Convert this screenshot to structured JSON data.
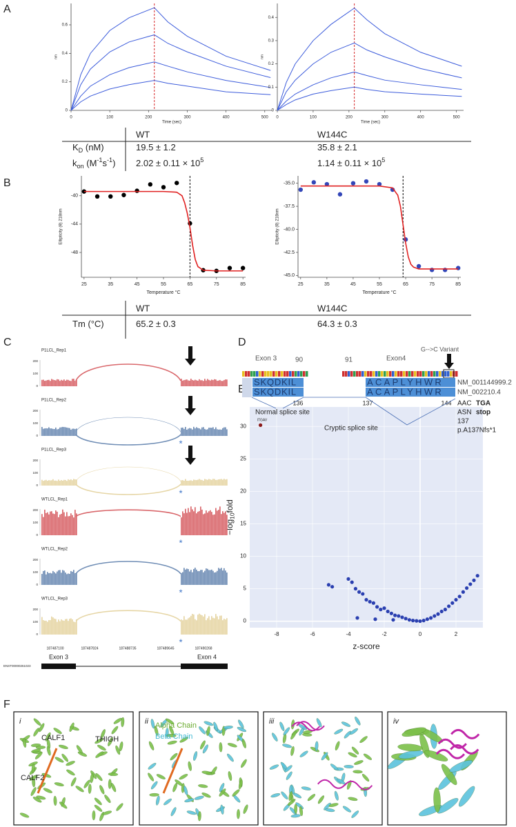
{
  "letters": [
    "A",
    "B",
    "C",
    "D",
    "E",
    "F"
  ],
  "chart_data": [
    {
      "type": "line",
      "xlabel": "Time (sec)",
      "ylabel": "nm",
      "x": [
        0,
        25,
        50,
        100,
        150,
        215,
        250,
        300,
        400,
        515
      ],
      "xlim": [
        0,
        520
      ],
      "xticks": [
        0,
        100,
        200,
        300,
        400,
        500
      ],
      "ylim": [
        0,
        0.75
      ],
      "yticks": [
        0,
        0.2,
        0.4,
        0.6
      ],
      "vline": 215,
      "vline_color": "#d62728",
      "series": [
        {
          "color": "#3b5bdb",
          "values": [
            0,
            0.25,
            0.4,
            0.56,
            0.65,
            0.72,
            0.62,
            0.52,
            0.38,
            0.28
          ]
        },
        {
          "color": "#3b5bdb",
          "values": [
            0,
            0.18,
            0.29,
            0.41,
            0.48,
            0.53,
            0.47,
            0.41,
            0.31,
            0.23
          ]
        },
        {
          "color": "#3b5bdb",
          "values": [
            0,
            0.1,
            0.17,
            0.25,
            0.3,
            0.34,
            0.31,
            0.27,
            0.21,
            0.16
          ]
        },
        {
          "color": "#3b5bdb",
          "values": [
            0,
            0.06,
            0.1,
            0.15,
            0.18,
            0.21,
            0.19,
            0.17,
            0.13,
            0.11
          ]
        }
      ]
    },
    {
      "type": "line",
      "xlabel": "Time (sec)",
      "ylabel": "nm",
      "x": [
        0,
        25,
        50,
        100,
        150,
        215,
        250,
        300,
        400,
        515
      ],
      "xlim": [
        0,
        520
      ],
      "xticks": [
        0,
        100,
        200,
        300,
        400,
        500
      ],
      "ylim": [
        0,
        0.46
      ],
      "yticks": [
        0,
        0.1,
        0.2,
        0.3,
        0.4
      ],
      "vline": 215,
      "vline_color": "#d62728",
      "series": [
        {
          "color": "#3b5bdb",
          "values": [
            0,
            0.12,
            0.2,
            0.3,
            0.37,
            0.44,
            0.39,
            0.33,
            0.25,
            0.19
          ]
        },
        {
          "color": "#3b5bdb",
          "values": [
            0,
            0.08,
            0.13,
            0.2,
            0.25,
            0.29,
            0.26,
            0.23,
            0.18,
            0.14
          ]
        },
        {
          "color": "#3b5bdb",
          "values": [
            0,
            0.04,
            0.07,
            0.11,
            0.14,
            0.165,
            0.15,
            0.13,
            0.11,
            0.09
          ]
        },
        {
          "color": "#3b5bdb",
          "values": [
            0,
            0.025,
            0.045,
            0.07,
            0.085,
            0.1,
            0.09,
            0.08,
            0.07,
            0.06
          ]
        }
      ]
    },
    {
      "type": "scatter",
      "xlabel": "Temperature °C",
      "ylabel": "Ellipticity (θ) 218nm",
      "xlim": [
        24,
        86
      ],
      "xticks": [
        25,
        35,
        45,
        55,
        65,
        75,
        85
      ],
      "ylim": [
        -51.5,
        -37.2
      ],
      "yticks": [
        -40,
        -44,
        -48
      ],
      "vline": 65,
      "vline_color": "#000000",
      "series": [
        {
          "color": "#000000",
          "x": [
            25,
            30,
            35,
            40,
            45,
            50,
            55,
            60,
            65,
            70,
            75,
            80,
            85
          ],
          "values": [
            -39.4,
            -40.1,
            -40.1,
            -39.9,
            -39.3,
            -38.4,
            -38.8,
            -38.2,
            -43.9,
            -50.5,
            -50.6,
            -50.2,
            -50.2
          ]
        },
        {
          "color": "#e02020",
          "line": true,
          "x": [
            25,
            55,
            60,
            62,
            63,
            64,
            65,
            66,
            67,
            68,
            70,
            75,
            85
          ],
          "values": [
            -39.4,
            -39.4,
            -39.5,
            -40,
            -41,
            -42.5,
            -44.5,
            -47,
            -49,
            -50,
            -50.5,
            -50.6,
            -50.6
          ]
        }
      ]
    },
    {
      "type": "scatter",
      "xlabel": "Temperature °C",
      "ylabel": "Ellipticity (θ) 218nm",
      "xlim": [
        24,
        86
      ],
      "xticks": [
        25,
        35,
        45,
        55,
        65,
        75,
        85
      ],
      "ylim": [
        -45.2,
        -34.2
      ],
      "yticks": [
        {
          "value": -35,
          "label": "-35.0"
        },
        {
          "value": -37.5,
          "label": "-37.5"
        },
        {
          "value": -40,
          "label": "-40.0"
        },
        {
          "value": -42.5,
          "label": "-42.5"
        },
        {
          "value": -45,
          "label": "-45.0"
        }
      ],
      "vline": 64,
      "vline_color": "#000000",
      "series": [
        {
          "color": "#3346b8",
          "x": [
            25,
            30,
            35,
            40,
            45,
            50,
            55,
            60,
            65,
            70,
            75,
            80,
            85
          ],
          "values": [
            -35.7,
            -34.9,
            -35.1,
            -36.2,
            -35.0,
            -34.8,
            -35.1,
            -35.7,
            -41.1,
            -44.0,
            -44.4,
            -44.4,
            -44.2
          ]
        },
        {
          "color": "#e02020",
          "line": true,
          "x": [
            25,
            55,
            60,
            62,
            63,
            64,
            65,
            66,
            67,
            68,
            70,
            75,
            85
          ],
          "values": [
            -35.3,
            -35.3,
            -35.5,
            -36.3,
            -37.5,
            -39.5,
            -41.5,
            -43,
            -43.8,
            -44.1,
            -44.3,
            -44.3,
            -44.3
          ]
        }
      ]
    },
    {
      "type": "scatter",
      "xlabel": "z-score",
      "ylabel": [
        [
          "−log",
          ""
        ],
        [
          "10",
          "sub"
        ],
        [
          "fold",
          ""
        ]
      ],
      "background": "#e4e9f6",
      "zero_lines": true,
      "xlim": [
        -9.5,
        3.5
      ],
      "xticks": [
        -8,
        -6,
        -4,
        -2,
        0,
        2
      ],
      "ylim": [
        -1,
        33
      ],
      "yticks": [
        0,
        5,
        10,
        15,
        20,
        25,
        30
      ],
      "series": [
        {
          "color": "#2a3fb0",
          "x": [
            -5.1,
            -4.9,
            -4.0,
            -3.8,
            -3.6,
            -3.4,
            -3.2,
            -3.0,
            -2.8,
            -2.6,
            -2.4,
            -2.2,
            -2.0,
            -1.8,
            -1.6,
            -1.4,
            -1.2,
            -1.0,
            -0.8,
            -0.6,
            -0.4,
            -0.2,
            0,
            0.2,
            0.4,
            0.6,
            0.8,
            1.0,
            1.2,
            1.4,
            1.6,
            1.8,
            2.0,
            2.2,
            2.4,
            2.6,
            2.8,
            3.0,
            3.2,
            -3.5,
            -2.5,
            -1.5
          ],
          "values": [
            5.6,
            5.3,
            6.5,
            6.0,
            5.0,
            4.5,
            4.2,
            3.3,
            3.0,
            2.8,
            2.2,
            1.8,
            2.0,
            1.5,
            1.2,
            0.9,
            0.8,
            0.6,
            0.4,
            0.2,
            0.1,
            0.05,
            0,
            0.1,
            0.3,
            0.5,
            0.8,
            1.1,
            1.5,
            1.8,
            2.3,
            2.8,
            3.3,
            3.8,
            4.5,
            5.1,
            5.7,
            6.3,
            7.0,
            0.5,
            0.3,
            0.2
          ]
        },
        {
          "color": "#8b1a1a",
          "label": "ITGAV",
          "x": [
            -8.9
          ],
          "values": [
            30.2
          ]
        }
      ]
    }
  ],
  "table_a": {
    "header": [
      "WT",
      "W144C"
    ],
    "rows": [
      {
        "label": [
          [
            "K",
            ""
          ],
          [
            "D",
            "sub"
          ],
          [
            " (nM)",
            ""
          ]
        ],
        "cells": [
          [
            [
              "19.5 ± 1.2",
              ""
            ]
          ],
          [
            [
              "35.8 ± 2.1",
              ""
            ]
          ]
        ]
      },
      {
        "label": [
          [
            "k",
            ""
          ],
          [
            "on",
            "sub"
          ],
          [
            " (M",
            ""
          ],
          [
            "-1",
            "sup"
          ],
          [
            "s",
            ""
          ],
          [
            "-1",
            "sup"
          ],
          [
            ")",
            ""
          ]
        ],
        "cells": [
          [
            [
              "2.02 ± 0.11 × 10",
              ""
            ],
            [
              "5",
              "sup"
            ]
          ],
          [
            [
              "1.14 ± 0.11 × 10",
              ""
            ],
            [
              "5",
              "sup"
            ]
          ]
        ]
      }
    ]
  },
  "table_b": {
    "header": [
      "WT",
      "W144C"
    ],
    "rows": [
      {
        "label": [
          [
            "Tm (°C)",
            ""
          ]
        ],
        "cells": [
          [
            [
              "65.2 ± 0.3",
              ""
            ]
          ],
          [
            [
              "64.3 ± 0.3",
              ""
            ]
          ]
        ]
      }
    ]
  },
  "sashimi": {
    "tracks": [
      {
        "name": "P1LCL_Rep1",
        "color": "#d9676b",
        "arc": "up",
        "arrow": true,
        "starred": false,
        "height": 10
      },
      {
        "name": "P1LCL_Rep2",
        "color": "#6f8db5",
        "arc": "down",
        "arrow": true,
        "starred": true,
        "height": 12
      },
      {
        "name": "P1LCL_Rep3",
        "color": "#e6d6a6",
        "arc": "down",
        "arrow": true,
        "starred": true,
        "height": 9
      },
      {
        "name": "WTLCL_Rep1",
        "color": "#d9676b",
        "arc": "up",
        "arrow": false,
        "starred": true,
        "height": 34
      },
      {
        "name": "WTLCL_Rep2",
        "color": "#6f8db5",
        "arc": "up",
        "arrow": false,
        "starred": true,
        "height": 20
      },
      {
        "name": "WTLCL_Rep3",
        "color": "#e6d6a6",
        "arc": "up",
        "arrow": false,
        "starred": true,
        "height": 24
      }
    ],
    "yticks": [
      "200",
      "100",
      "0"
    ],
    "star": "*",
    "xticks": [
      "187487100",
      "187487824",
      "187488735",
      "187489645",
      "187490268"
    ],
    "transcript": "ENST00000261023",
    "exons": [
      "Exon 3",
      "Exon 4"
    ]
  },
  "alignment": {
    "exon_left": "Exon 3",
    "pos_left": "90",
    "pos_right": "91",
    "exon_right": "Exon4",
    "variant": "G-->C Variant",
    "rows": [
      {
        "left": "SKQDKIL",
        "right": "ACAPLYHWR",
        "name": "NM_001144999.2"
      },
      {
        "left": "SKQDKIL",
        "right": "ACAPLYHWR",
        "name": "NM_002210.4"
      }
    ],
    "below": [
      "136",
      "137",
      "144"
    ],
    "normal": "Normal splice site",
    "cryptic": "Cryptic splice site",
    "codons": [
      [
        "AAC",
        "TGA"
      ],
      [
        "ASN",
        "stop"
      ]
    ],
    "pos": "137",
    "protein": "p.A137Nfs*1"
  },
  "structure": {
    "panels": [
      {
        "numeral": "i",
        "labels": [
          {
            "text": "CALF1",
            "color": "#222222"
          },
          {
            "text": "THIGH",
            "color": "#222222"
          },
          {
            "text": "CALF2",
            "color": "#222222"
          }
        ]
      },
      {
        "numeral": "ii",
        "labels": [
          {
            "text": "Alpha Chain",
            "color": "#6aaa2e"
          },
          {
            "text": "Beta Chain",
            "color": "#3fb8d2"
          }
        ]
      },
      {
        "numeral": "iii",
        "labels": []
      },
      {
        "numeral": "iv",
        "labels": []
      }
    ]
  }
}
